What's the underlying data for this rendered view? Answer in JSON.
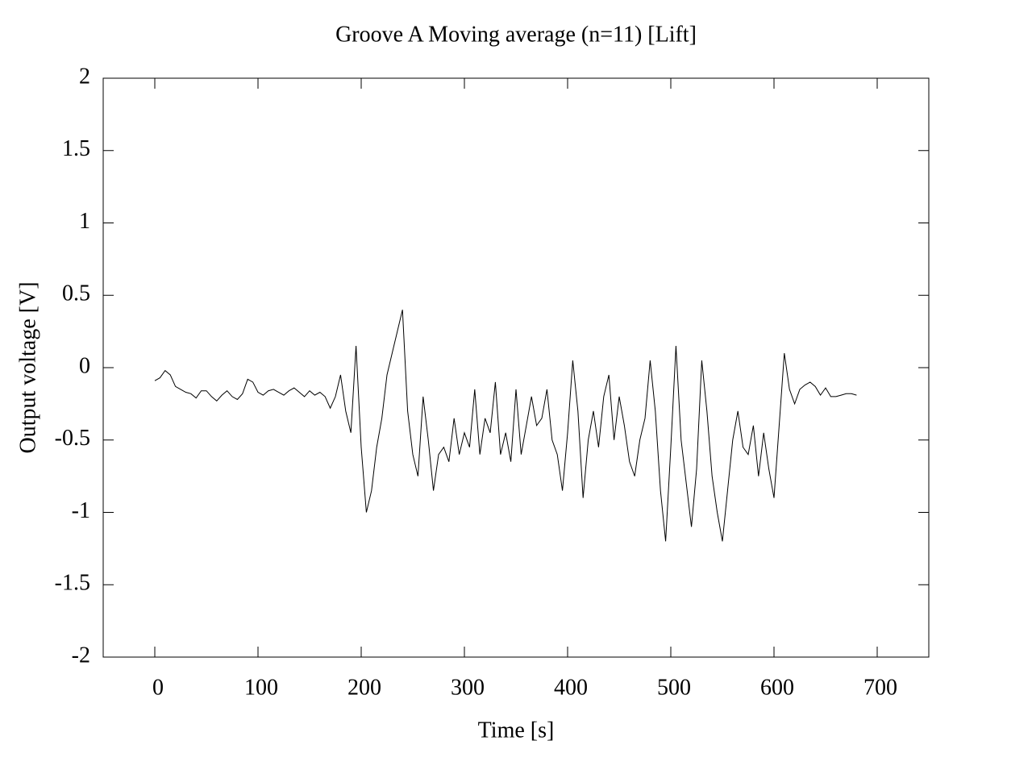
{
  "chart_data": {
    "type": "line",
    "title": "Groove A  Moving average (n=11) [Lift]",
    "x_label": "Time [s]",
    "y_label": "Output voltage [V]",
    "xlim": [
      -50,
      750
    ],
    "ylim": [
      -2,
      2
    ],
    "xticks": [
      0,
      100,
      200,
      300,
      400,
      500,
      600,
      700
    ],
    "yticks": [
      2,
      1.5,
      1,
      0.5,
      0,
      -0.5,
      -1,
      -1.5,
      -2
    ],
    "grid": false,
    "series": [
      {
        "color": "#000000",
        "x": [
          0,
          5,
          10,
          15,
          20,
          25,
          30,
          35,
          40,
          45,
          50,
          55,
          60,
          65,
          70,
          75,
          80,
          85,
          90,
          95,
          100,
          105,
          110,
          115,
          120,
          125,
          130,
          135,
          140,
          145,
          150,
          155,
          160,
          165,
          170,
          175,
          180,
          185,
          190,
          195,
          200,
          205,
          210,
          215,
          220,
          225,
          230,
          235,
          240,
          245,
          250,
          255,
          260,
          265,
          270,
          275,
          280,
          285,
          290,
          295,
          300,
          305,
          310,
          315,
          320,
          325,
          330,
          335,
          340,
          345,
          350,
          355,
          360,
          365,
          370,
          375,
          380,
          385,
          390,
          395,
          400,
          405,
          410,
          415,
          420,
          425,
          430,
          435,
          440,
          445,
          450,
          455,
          460,
          465,
          470,
          475,
          480,
          485,
          490,
          495,
          500,
          505,
          510,
          515,
          520,
          525,
          530,
          535,
          540,
          545,
          550,
          555,
          560,
          565,
          570,
          575,
          580,
          585,
          590,
          595,
          600,
          605,
          610,
          615,
          620,
          625,
          630,
          635,
          640,
          645,
          650,
          655,
          660,
          665,
          670,
          675,
          680
        ],
        "values": [
          -0.09,
          -0.07,
          -0.02,
          -0.05,
          -0.13,
          -0.15,
          -0.17,
          -0.18,
          -0.21,
          -0.16,
          -0.16,
          -0.2,
          -0.23,
          -0.19,
          -0.16,
          -0.2,
          -0.22,
          -0.18,
          -0.08,
          -0.1,
          -0.17,
          -0.19,
          -0.16,
          -0.15,
          -0.17,
          -0.19,
          -0.16,
          -0.14,
          -0.17,
          -0.2,
          -0.16,
          -0.19,
          -0.17,
          -0.2,
          -0.28,
          -0.2,
          -0.05,
          -0.3,
          -0.45,
          0.15,
          -0.55,
          -1.0,
          -0.85,
          -0.55,
          -0.35,
          -0.05,
          0.1,
          0.25,
          0.4,
          -0.3,
          -0.6,
          -0.75,
          -0.2,
          -0.5,
          -0.85,
          -0.6,
          -0.55,
          -0.65,
          -0.35,
          -0.6,
          -0.45,
          -0.55,
          -0.15,
          -0.6,
          -0.35,
          -0.45,
          -0.1,
          -0.6,
          -0.45,
          -0.65,
          -0.15,
          -0.6,
          -0.4,
          -0.2,
          -0.4,
          -0.35,
          -0.15,
          -0.5,
          -0.6,
          -0.85,
          -0.45,
          0.05,
          -0.3,
          -0.9,
          -0.5,
          -0.3,
          -0.55,
          -0.2,
          -0.05,
          -0.5,
          -0.2,
          -0.4,
          -0.65,
          -0.75,
          -0.5,
          -0.35,
          0.05,
          -0.3,
          -0.85,
          -1.2,
          -0.55,
          0.15,
          -0.5,
          -0.8,
          -1.1,
          -0.7,
          0.05,
          -0.3,
          -0.75,
          -1.0,
          -1.2,
          -0.85,
          -0.5,
          -0.3,
          -0.55,
          -0.6,
          -0.4,
          -0.75,
          -0.45,
          -0.7,
          -0.9,
          -0.4,
          0.1,
          -0.15,
          -0.25,
          -0.15,
          -0.12,
          -0.1,
          -0.13,
          -0.19,
          -0.14,
          -0.2,
          -0.2,
          -0.19,
          -0.18,
          -0.18,
          -0.19
        ]
      }
    ]
  }
}
